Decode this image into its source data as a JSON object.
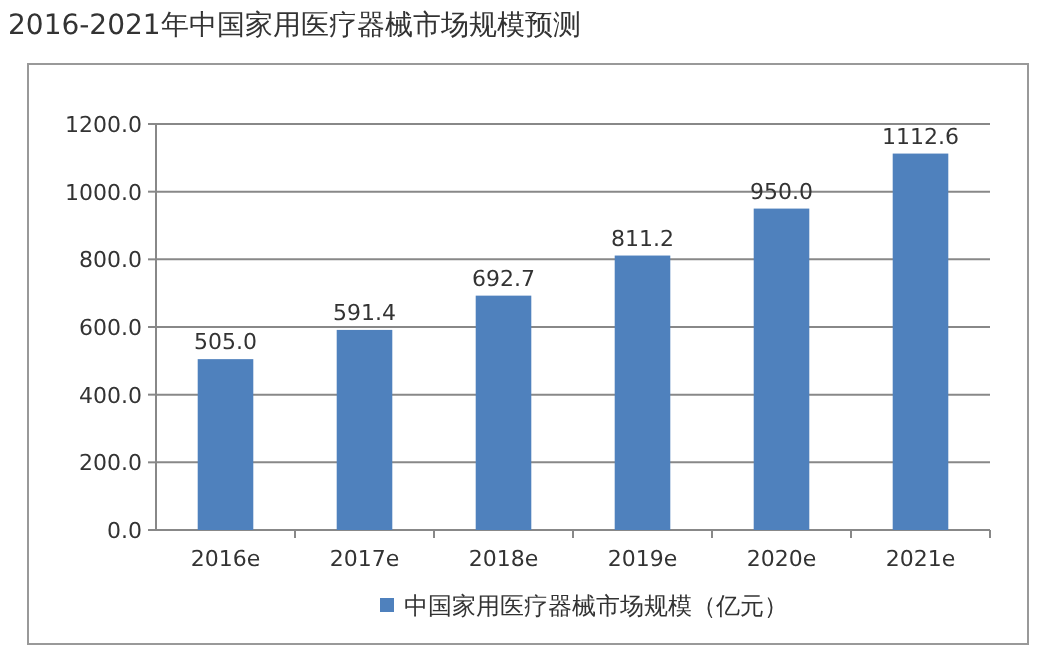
{
  "chart_data": {
    "type": "bar",
    "title": "2016-2021年中国家用医疗器械市场规模预测",
    "categories": [
      "2016e",
      "2017e",
      "2018e",
      "2019e",
      "2020e",
      "2021e"
    ],
    "series": [
      {
        "name": "中国家用医疗器械市场规模（亿元）",
        "color": "#4f81bd",
        "values": [
          505.0,
          591.4,
          692.7,
          811.2,
          950.0,
          1112.6
        ],
        "value_labels": [
          "505.0",
          "591.4",
          "692.7",
          "811.2",
          "950.0",
          "1112.6"
        ]
      }
    ],
    "ylim": [
      0,
      1200
    ],
    "yticks": [
      {
        "value": 0,
        "label": "0.0"
      },
      {
        "value": 200,
        "label": "200.0"
      },
      {
        "value": 400,
        "label": "400.0"
      },
      {
        "value": 600,
        "label": "600.0"
      },
      {
        "value": 800,
        "label": "800.0"
      },
      {
        "value": 1000,
        "label": "1000.0"
      },
      {
        "value": 1200,
        "label": "1200.0"
      }
    ],
    "grid": "y",
    "legend": "bottom"
  }
}
